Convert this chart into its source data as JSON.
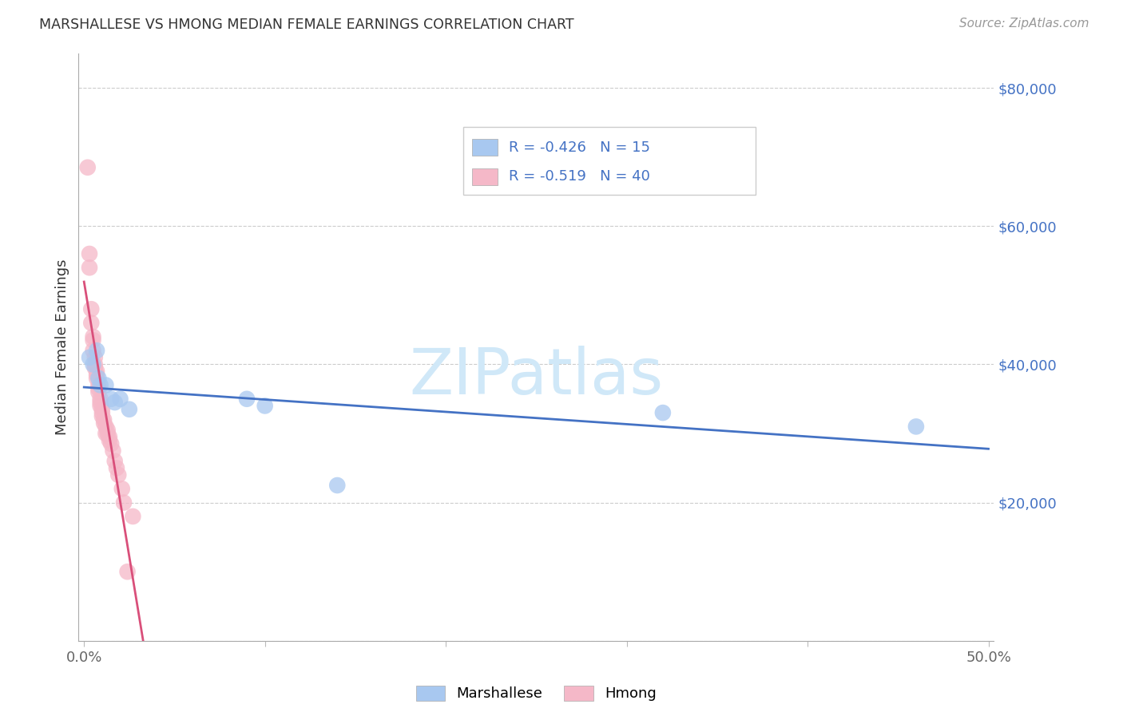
{
  "title": "MARSHALLESE VS HMONG MEDIAN FEMALE EARNINGS CORRELATION CHART",
  "source": "Source: ZipAtlas.com",
  "ylabel": "Median Female Earnings",
  "marshallese_R": -0.426,
  "marshallese_N": 15,
  "hmong_R": -0.519,
  "hmong_N": 40,
  "marshallese_color": "#a8c8f0",
  "hmong_color": "#f5b8c8",
  "marshallese_line_color": "#4472c4",
  "hmong_line_color": "#d94f7a",
  "watermark_color": "#d0e8f8",
  "background_color": "#ffffff",
  "xlim": [
    0.0,
    0.5
  ],
  "ylim": [
    0,
    85000
  ],
  "y_ticks": [
    0,
    20000,
    40000,
    60000,
    80000
  ],
  "marshallese_x": [
    0.003,
    0.005,
    0.007,
    0.008,
    0.009,
    0.012,
    0.015,
    0.017,
    0.02,
    0.025,
    0.09,
    0.1,
    0.14,
    0.32,
    0.46
  ],
  "marshallese_y": [
    41000,
    40000,
    42000,
    38000,
    37000,
    37000,
    35000,
    34500,
    35000,
    33500,
    35000,
    34000,
    22500,
    33000,
    31000
  ],
  "hmong_x": [
    0.002,
    0.003,
    0.003,
    0.004,
    0.004,
    0.005,
    0.005,
    0.005,
    0.006,
    0.006,
    0.006,
    0.007,
    0.007,
    0.007,
    0.008,
    0.008,
    0.008,
    0.009,
    0.009,
    0.009,
    0.01,
    0.01,
    0.01,
    0.011,
    0.011,
    0.012,
    0.012,
    0.013,
    0.013,
    0.014,
    0.014,
    0.015,
    0.016,
    0.017,
    0.018,
    0.019,
    0.021,
    0.022,
    0.024,
    0.027
  ],
  "hmong_y": [
    68500,
    56000,
    54000,
    48000,
    46000,
    44000,
    43500,
    42000,
    41000,
    40000,
    39500,
    39000,
    38500,
    38000,
    37000,
    36500,
    36000,
    35000,
    34500,
    34000,
    33500,
    33000,
    32500,
    32000,
    31500,
    31000,
    30000,
    30500,
    30000,
    29500,
    29000,
    28500,
    27500,
    26000,
    25000,
    24000,
    22000,
    20000,
    10000,
    18000
  ]
}
